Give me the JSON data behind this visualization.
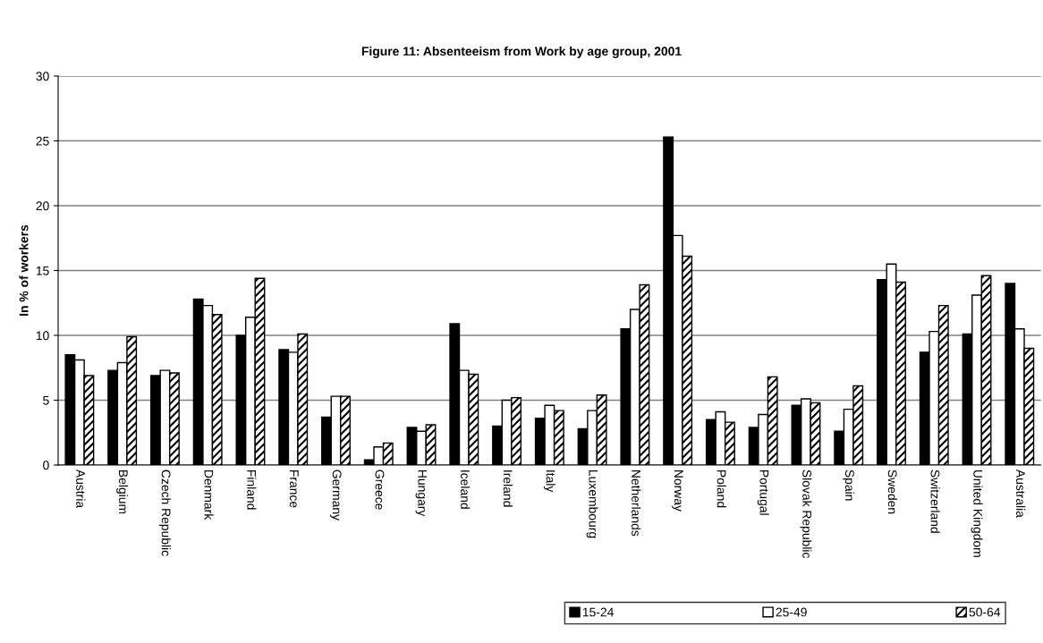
{
  "chart_data": {
    "type": "bar",
    "title": "Figure 11: Absenteeism from Work by age group, 2001",
    "ylabel": "In % of workers",
    "categories": [
      "Austria",
      "Belgium",
      "Czech Republic",
      "Denmark",
      "Finland",
      "France",
      "Germany",
      "Greece",
      "Hungary",
      "Iceland",
      "Ireland",
      "Italy",
      "Luxembourg",
      "Netherlands",
      "Norway",
      "Poland",
      "Portugal",
      "Slovak Republic",
      "Spain",
      "Sweden",
      "Switzerland",
      "United Kingdom",
      "Australia"
    ],
    "series": [
      {
        "name": "15-24",
        "color": "#000000",
        "values": [
          8.5,
          7.3,
          6.9,
          12.8,
          10.0,
          8.9,
          3.7,
          0.4,
          2.9,
          10.9,
          3.0,
          3.6,
          2.8,
          10.5,
          25.3,
          3.5,
          2.9,
          4.6,
          2.6,
          14.3,
          8.7,
          10.1,
          14.0
        ]
      },
      {
        "name": "25-49",
        "color": "#ffffff",
        "values": [
          8.1,
          7.9,
          7.3,
          12.3,
          11.4,
          8.7,
          5.3,
          1.4,
          2.6,
          7.3,
          5.0,
          4.6,
          4.2,
          12.0,
          17.7,
          4.1,
          3.9,
          5.1,
          4.3,
          15.5,
          10.3,
          13.1,
          10.5
        ]
      },
      {
        "name": "50-64",
        "color": "#000000",
        "values": [
          6.9,
          9.9,
          7.1,
          11.6,
          14.4,
          10.1,
          5.3,
          1.7,
          3.1,
          7.0,
          5.2,
          4.2,
          5.4,
          13.9,
          16.1,
          3.3,
          6.8,
          4.8,
          6.1,
          14.1,
          12.3,
          14.6,
          9.0
        ]
      }
    ],
    "ylim": [
      0,
      30
    ],
    "yticks": [
      0,
      5,
      10,
      15,
      20,
      25,
      30
    ],
    "grid": "y",
    "legend": "bottom right"
  }
}
